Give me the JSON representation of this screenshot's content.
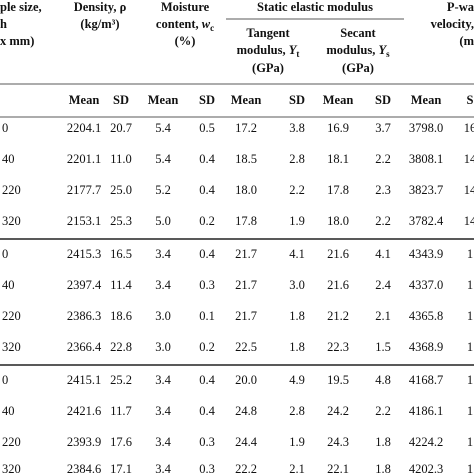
{
  "header": {
    "sample": [
      [
        "ple size,"
      ],
      [
        "h"
      ],
      [
        "x mm)"
      ]
    ],
    "density": [
      [
        "Density, ρ"
      ],
      [
        "(kg/m³)"
      ]
    ],
    "moisture": [
      [
        "Moisture"
      ],
      [
        "content, ",
        "w",
        "c"
      ],
      [
        "(%)"
      ]
    ],
    "static": "Static elastic modulus",
    "tangent": [
      [
        "Tangent"
      ],
      [
        "modulus, ",
        "Y",
        "t"
      ],
      [
        "(GPa)"
      ]
    ],
    "secant": [
      [
        "Secant"
      ],
      [
        "modulus, ",
        "Y",
        "s"
      ],
      [
        "(GPa)"
      ]
    ],
    "pwave": [
      [
        "P-wa"
      ],
      [
        "velocity,"
      ],
      [
        "(m"
      ]
    ],
    "sub": [
      "Mean",
      "SD",
      "Mean",
      "SD",
      "Mean",
      "SD",
      "Mean",
      "SD",
      "Mean",
      "S"
    ]
  },
  "table": {
    "rows": [
      [
        "0",
        "2204.1",
        "20.7",
        "5.4",
        "0.5",
        "17.2",
        "3.8",
        "16.9",
        "3.7",
        "3798.0",
        "16"
      ],
      [
        "40",
        "2201.1",
        "11.0",
        "5.4",
        "0.4",
        "18.5",
        "2.8",
        "18.1",
        "2.2",
        "3808.1",
        "14"
      ],
      [
        "220",
        "2177.7",
        "25.0",
        "5.2",
        "0.4",
        "18.0",
        "2.2",
        "17.8",
        "2.3",
        "3823.7",
        "14"
      ],
      [
        "320",
        "2153.1",
        "25.3",
        "5.0",
        "0.2",
        "17.8",
        "1.9",
        "18.0",
        "2.2",
        "3782.4",
        "14"
      ],
      [
        "0",
        "2415.3",
        "16.5",
        "3.4",
        "0.4",
        "21.7",
        "4.1",
        "21.6",
        "4.1",
        "4343.9",
        "1"
      ],
      [
        "40",
        "2397.4",
        "11.4",
        "3.4",
        "0.3",
        "21.7",
        "3.0",
        "21.6",
        "2.4",
        "4337.0",
        "1"
      ],
      [
        "220",
        "2386.3",
        "18.6",
        "3.0",
        "0.1",
        "21.7",
        "1.8",
        "21.2",
        "2.1",
        "4365.8",
        "1"
      ],
      [
        "320",
        "2366.4",
        "22.8",
        "3.0",
        "0.2",
        "22.5",
        "1.8",
        "22.3",
        "1.5",
        "4368.9",
        "1"
      ],
      [
        "0",
        "2415.1",
        "25.2",
        "3.4",
        "0.4",
        "20.0",
        "4.9",
        "19.5",
        "4.8",
        "4168.7",
        "1"
      ],
      [
        "40",
        "2421.6",
        "11.7",
        "3.4",
        "0.4",
        "24.8",
        "2.8",
        "24.2",
        "2.2",
        "4186.1",
        "1"
      ],
      [
        "220",
        "2393.9",
        "17.6",
        "3.4",
        "0.3",
        "24.4",
        "1.9",
        "24.3",
        "1.8",
        "4224.2",
        "1"
      ],
      [
        "320",
        "2384.6",
        "17.1",
        "3.4",
        "0.3",
        "22.2",
        "2.1",
        "22.1",
        "1.8",
        "4202.3",
        "1"
      ]
    ]
  }
}
